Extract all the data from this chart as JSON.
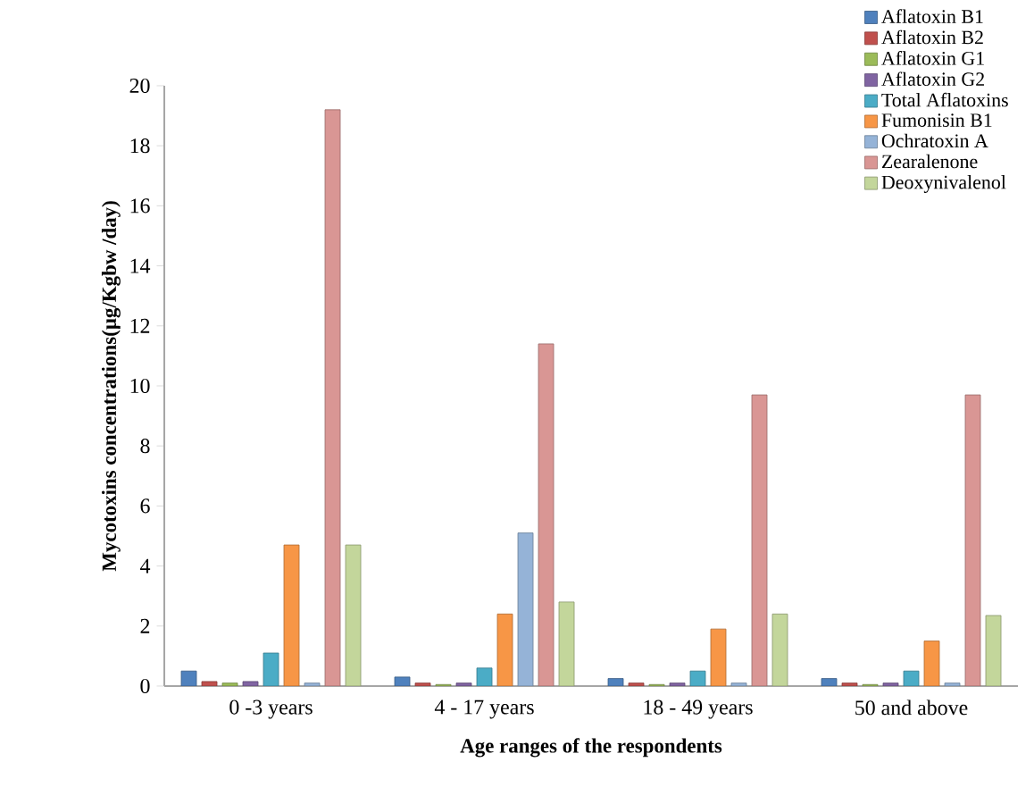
{
  "chart_data": {
    "type": "bar",
    "xlabel": "Age ranges of the respondents",
    "ylabel": "Mycotoxins concentrations(µg/Kgbw /day)",
    "categories": [
      "0 -3 years",
      "4 - 17 years",
      "18 - 49 years",
      "50 and above"
    ],
    "series": [
      {
        "name": "Aflatoxin B1",
        "color": "#4f81bd",
        "values": [
          0.5,
          0.3,
          0.25,
          0.25
        ]
      },
      {
        "name": "Aflatoxin B2",
        "color": "#c0504d",
        "values": [
          0.15,
          0.1,
          0.1,
          0.1
        ]
      },
      {
        "name": "Aflatoxin G1",
        "color": "#9bbb59",
        "values": [
          0.1,
          0.05,
          0.05,
          0.05
        ]
      },
      {
        "name": "Aflatoxin G2",
        "color": "#8064a2",
        "values": [
          0.15,
          0.1,
          0.1,
          0.1
        ]
      },
      {
        "name": "Total Aflatoxins",
        "color": "#4bacc6",
        "values": [
          1.1,
          0.6,
          0.5,
          0.5
        ]
      },
      {
        "name": "Fumonisin B1",
        "color": "#f79646",
        "values": [
          4.7,
          2.4,
          1.9,
          1.5
        ]
      },
      {
        "name": "Ochratoxin A",
        "color": "#95b3d7",
        "values": [
          0.1,
          5.1,
          0.1,
          0.1
        ]
      },
      {
        "name": "Zearalenone",
        "color": "#d99694",
        "values": [
          19.2,
          11.4,
          9.7,
          9.7
        ]
      },
      {
        "name": "Deoxynivalenol",
        "color": "#c3d69b",
        "values": [
          4.7,
          2.8,
          2.4,
          2.35
        ]
      }
    ],
    "ylim": [
      0,
      20
    ],
    "yticks": [
      0,
      2,
      4,
      6,
      8,
      10,
      12,
      14,
      16,
      18,
      20
    ],
    "legend": "top right"
  }
}
